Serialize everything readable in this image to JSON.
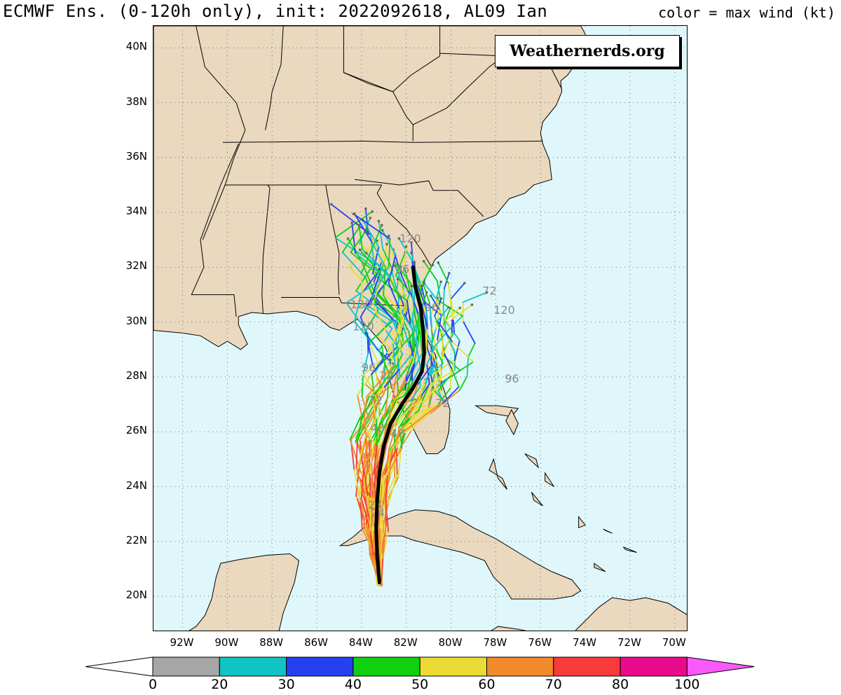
{
  "title": {
    "left": "ECMWF Ens. (0-120h only), init: 2022092618, AL09 Ian",
    "right": "color = max wind (kt)"
  },
  "watermark": "Weathernerds.org",
  "map": {
    "lat_labels": [
      "40N",
      "38N",
      "36N",
      "34N",
      "32N",
      "30N",
      "28N",
      "26N",
      "24N",
      "22N",
      "20N"
    ],
    "lon_labels": [
      "92W",
      "90W",
      "88W",
      "86W",
      "84W",
      "82W",
      "80W",
      "78W",
      "76W",
      "74W",
      "72W",
      "70W"
    ],
    "lat_range": [
      18.7,
      40.8
    ],
    "lon_range": [
      93.3,
      69.4
    ],
    "grid": "dotted",
    "ocean_color": "#dff7fb",
    "land_color": "#ead8bf"
  },
  "tracks": {
    "hour_labels": [
      "120",
      "96",
      "72",
      "48",
      "24",
      "4"
    ],
    "mean_track_color": "#000000",
    "mean_track": [
      [
        20.5,
        83.2
      ],
      [
        21.5,
        83.3
      ],
      [
        22.5,
        83.35
      ],
      [
        23.5,
        83.3
      ],
      [
        24.5,
        83.2
      ],
      [
        25.5,
        83.0
      ],
      [
        26.3,
        82.7
      ],
      [
        27.0,
        82.2
      ],
      [
        27.6,
        81.7
      ],
      [
        28.2,
        81.3
      ],
      [
        28.9,
        81.2
      ],
      [
        29.7,
        81.25
      ],
      [
        30.5,
        81.35
      ],
      [
        31.3,
        81.6
      ],
      [
        32.0,
        81.7
      ]
    ]
  },
  "colorbar": {
    "labels": [
      "0",
      "20",
      "30",
      "40",
      "50",
      "60",
      "70",
      "80",
      "100"
    ],
    "colors": [
      "#a6a6a6",
      "#10c4c4",
      "#2440f0",
      "#10d010",
      "#eadc34",
      "#f08a2a",
      "#f83a3a",
      "#ea0a8c"
    ],
    "under_color": "#ffffff",
    "over_color": "#fa5afa"
  }
}
